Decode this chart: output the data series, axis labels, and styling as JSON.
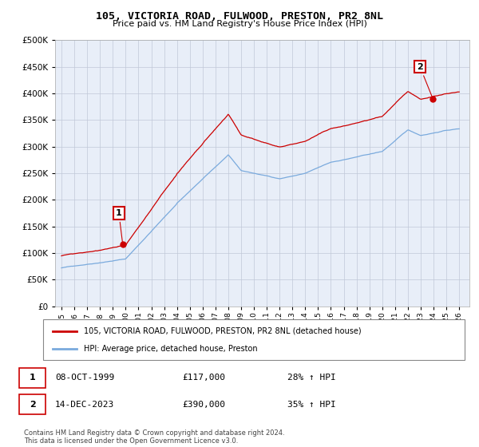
{
  "title": "105, VICTORIA ROAD, FULWOOD, PRESTON, PR2 8NL",
  "subtitle": "Price paid vs. HM Land Registry's House Price Index (HPI)",
  "ylim": [
    0,
    500000
  ],
  "yticks": [
    0,
    50000,
    100000,
    150000,
    200000,
    250000,
    300000,
    350000,
    400000,
    450000,
    500000
  ],
  "xlabel_years": [
    "1995",
    "1996",
    "1997",
    "1998",
    "1999",
    "2000",
    "2001",
    "2002",
    "2003",
    "2004",
    "2005",
    "2006",
    "2007",
    "2008",
    "2009",
    "2010",
    "2011",
    "2012",
    "2013",
    "2014",
    "2015",
    "2016",
    "2017",
    "2018",
    "2019",
    "2020",
    "2021",
    "2022",
    "2023",
    "2024",
    "2025",
    "2026"
  ],
  "hpi_color": "#7aaadd",
  "price_color": "#cc0000",
  "marker_color": "#cc0000",
  "bg_color": "#e8eef8",
  "grid_color": "#c0c8d8",
  "legend_label_price": "105, VICTORIA ROAD, FULWOOD, PRESTON, PR2 8NL (detached house)",
  "legend_label_hpi": "HPI: Average price, detached house, Preston",
  "sale1_num": "1",
  "sale1_date": "08-OCT-1999",
  "sale1_price": "£117,000",
  "sale1_hpi": "28% ↑ HPI",
  "sale2_num": "2",
  "sale2_date": "14-DEC-2023",
  "sale2_price": "£390,000",
  "sale2_hpi": "35% ↑ HPI",
  "footnote": "Contains HM Land Registry data © Crown copyright and database right 2024.\nThis data is licensed under the Open Government Licence v3.0.",
  "sale1_year": 1999.77,
  "sale1_value": 117000,
  "sale2_year": 2023.95,
  "sale2_value": 390000
}
